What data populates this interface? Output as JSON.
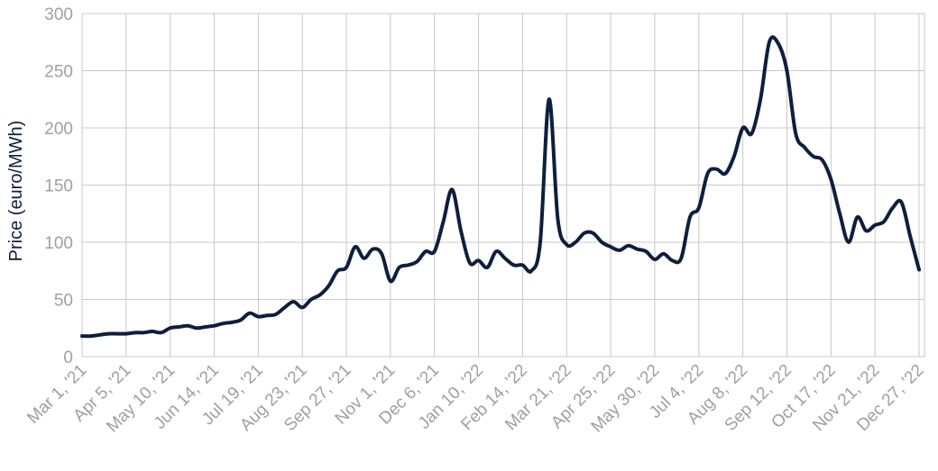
{
  "chart_data": {
    "type": "line",
    "y_label": "Price (euro/MWh)",
    "categories": [
      "Mar 1, '21",
      null,
      null,
      null,
      null,
      "Apr 5, '21",
      null,
      null,
      null,
      null,
      "May 10, '21",
      null,
      null,
      null,
      null,
      "Jun 14, '21",
      null,
      null,
      null,
      null,
      "Jul 19, '21",
      null,
      null,
      null,
      null,
      "Aug 23, '21",
      null,
      null,
      null,
      null,
      "Sep 27, '21",
      null,
      null,
      null,
      null,
      "Nov 1, '21",
      null,
      null,
      null,
      null,
      "Dec 6, '21",
      null,
      null,
      null,
      null,
      "Jan 10, '22",
      null,
      null,
      null,
      null,
      "Feb 14, '22",
      null,
      null,
      null,
      null,
      "Mar 21, '22",
      null,
      null,
      null,
      null,
      "Apr 25, '22",
      null,
      null,
      null,
      null,
      "May 30, '22",
      null,
      null,
      null,
      null,
      "Jul 4, '22",
      null,
      null,
      null,
      null,
      "Aug 8, '22",
      null,
      null,
      null,
      null,
      "Sep 12, '22",
      null,
      null,
      null,
      null,
      "Oct 17, '22",
      null,
      null,
      null,
      null,
      "Nov 21, '22",
      null,
      null,
      null,
      null,
      "Dec 27, '22"
    ],
    "series": [
      {
        "name": "Price",
        "color": "#0e1f3d",
        "values": [
          18,
          18,
          19,
          20,
          20,
          20,
          21,
          21,
          22,
          21,
          25,
          26,
          27,
          25,
          26,
          27,
          29,
          30,
          32,
          38,
          35,
          36,
          37,
          43,
          48,
          43,
          50,
          54,
          62,
          75,
          78,
          96,
          86,
          94,
          90,
          66,
          78,
          80,
          83,
          92,
          92,
          118,
          146,
          110,
          82,
          84,
          78,
          92,
          86,
          80,
          80,
          75,
          100,
          225,
          120,
          98,
          100,
          108,
          108,
          100,
          96,
          93,
          97,
          94,
          92,
          85,
          90,
          84,
          86,
          122,
          130,
          160,
          164,
          160,
          175,
          200,
          195,
          225,
          275,
          274,
          250,
          195,
          183,
          175,
          172,
          155,
          125,
          100,
          122,
          110,
          115,
          118,
          130,
          135,
          105,
          76
        ]
      }
    ],
    "ylim": [
      0,
      300
    ],
    "yticks": [
      0,
      50,
      100,
      150,
      200,
      250,
      300
    ],
    "grid": true
  }
}
